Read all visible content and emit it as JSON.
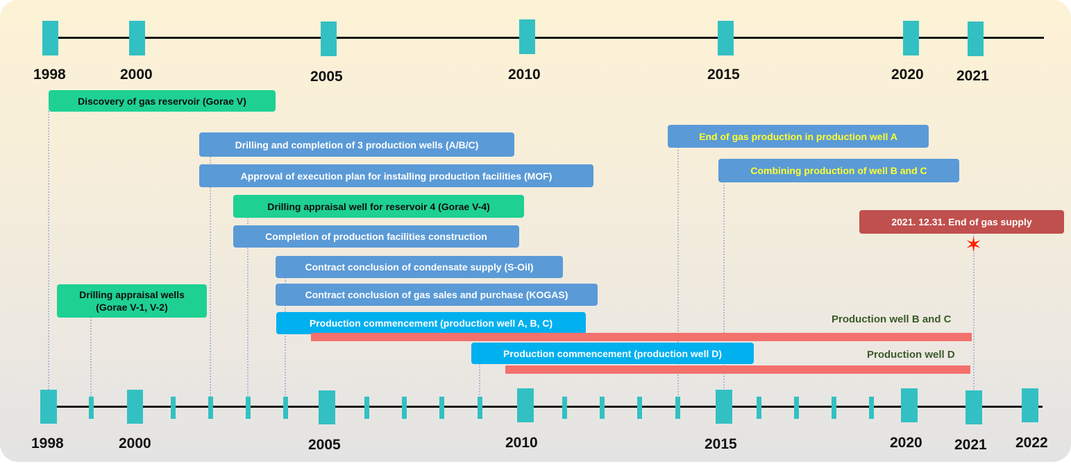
{
  "timeline_top": {
    "years": [
      "1998",
      "2000",
      "2005",
      "2010",
      "2015",
      "2020",
      "2021"
    ]
  },
  "timeline_bottom": {
    "years": [
      "1998",
      "2000",
      "2005",
      "2010",
      "2015",
      "2020",
      "2021",
      "2022"
    ]
  },
  "events": {
    "discovery": "Discovery of gas reservoir (Gorae V)",
    "appraisal_wells_line1": "Drilling appraisal wells",
    "appraisal_wells_line2": "(Gorae V-1, V-2)",
    "drilling_production_wells": "Drilling and completion of 3 production wells (A/B/C)",
    "approval_execution_plan": "Approval of execution plan for installing production facilities (MOF)",
    "appraisal_well_reservoir4": "Drilling appraisal well for reservoir 4 (Gorae V-4)",
    "completion_facilities": "Completion of production facilities construction",
    "contract_condensate": "Contract conclusion of condensate supply (S-Oil)",
    "contract_gas_sales": "Contract conclusion of gas sales and purchase (KOGAS)",
    "production_abc": "Production commencement (production well A, B, C)",
    "production_d": "Production commencement (production well D)",
    "end_well_a": "End of gas production in production well A",
    "combining_bc": "Combining production of well B and  C",
    "end_supply": "2021. 12.31. End of gas supply"
  },
  "bars": {
    "well_bc_label": "Production well B and C",
    "well_d_label": "Production well D"
  },
  "colors": {
    "marker": "#33c0c3",
    "green_box": "#1ed193",
    "steel_box": "#5a9ad7",
    "sky_box": "#00b0ef",
    "red_box": "#c0504d",
    "bar": "#f2716c",
    "highlight_text": "#ffff2e"
  }
}
